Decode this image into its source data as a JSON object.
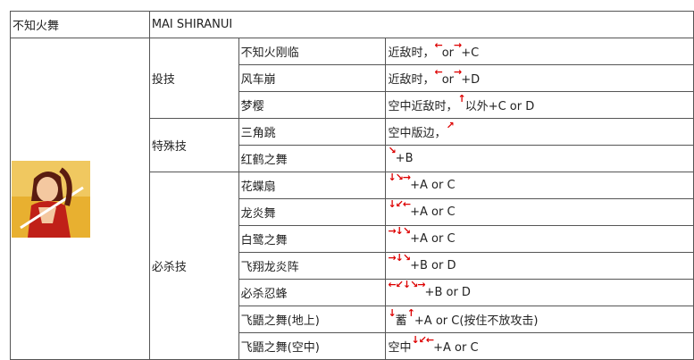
{
  "header": {
    "name": "不知火舞",
    "value": "MAI SHIRANUI"
  },
  "groups": [
    {
      "label": "投技",
      "moves": [
        {
          "name": "不知火刚临",
          "cmd": [
            {
              "t": "近敌时，"
            },
            {
              "a": "←"
            },
            {
              "t": "or"
            },
            {
              "a": "→"
            },
            {
              "t": "+C"
            }
          ]
        },
        {
          "name": "风车崩",
          "cmd": [
            {
              "t": "近敌时，"
            },
            {
              "a": "←"
            },
            {
              "t": "or"
            },
            {
              "a": "→"
            },
            {
              "t": "+D"
            }
          ]
        },
        {
          "name": "梦樱",
          "cmd": [
            {
              "t": "空中近敌时，"
            },
            {
              "a": "↑"
            },
            {
              "t": "以外+C or D"
            }
          ]
        }
      ]
    },
    {
      "label": "特殊技",
      "moves": [
        {
          "name": "三角跳",
          "cmd": [
            {
              "t": "空中版边，"
            },
            {
              "a": "↗"
            }
          ]
        },
        {
          "name": "红鹤之舞",
          "cmd": [
            {
              "a": "↘"
            },
            {
              "t": "+B"
            }
          ]
        }
      ]
    },
    {
      "label": "必杀技",
      "moves": [
        {
          "name": "花蝶扇",
          "cmd": [
            {
              "a": "↓↘→"
            },
            {
              "t": "+A or C"
            }
          ]
        },
        {
          "name": "龙炎舞",
          "cmd": [
            {
              "a": "↓↙←"
            },
            {
              "t": "+A or C"
            }
          ]
        },
        {
          "name": "白鹭之舞",
          "cmd": [
            {
              "a": "→↓↘"
            },
            {
              "t": "+A or C"
            }
          ]
        },
        {
          "name": "飞翔龙炎阵",
          "cmd": [
            {
              "a": "→↓↘"
            },
            {
              "t": "+B or D"
            }
          ]
        },
        {
          "name": "必杀忍蜂",
          "cmd": [
            {
              "a": "←↙↓↘→"
            },
            {
              "t": "+B or D"
            }
          ]
        },
        {
          "name": "飞鼯之舞(地上)",
          "cmd": [
            {
              "a": "↓"
            },
            {
              "t": "蓄"
            },
            {
              "a": "↑"
            },
            {
              "t": "+A or C(按住不放攻击)"
            }
          ]
        },
        {
          "name": "飞鼯之舞(空中)",
          "cmd": [
            {
              "t": "空中"
            },
            {
              "a": "↓↙←"
            },
            {
              "t": "+A or C"
            }
          ]
        }
      ]
    }
  ],
  "colors": {
    "arrow": "#dd0000",
    "border": "#555555"
  }
}
